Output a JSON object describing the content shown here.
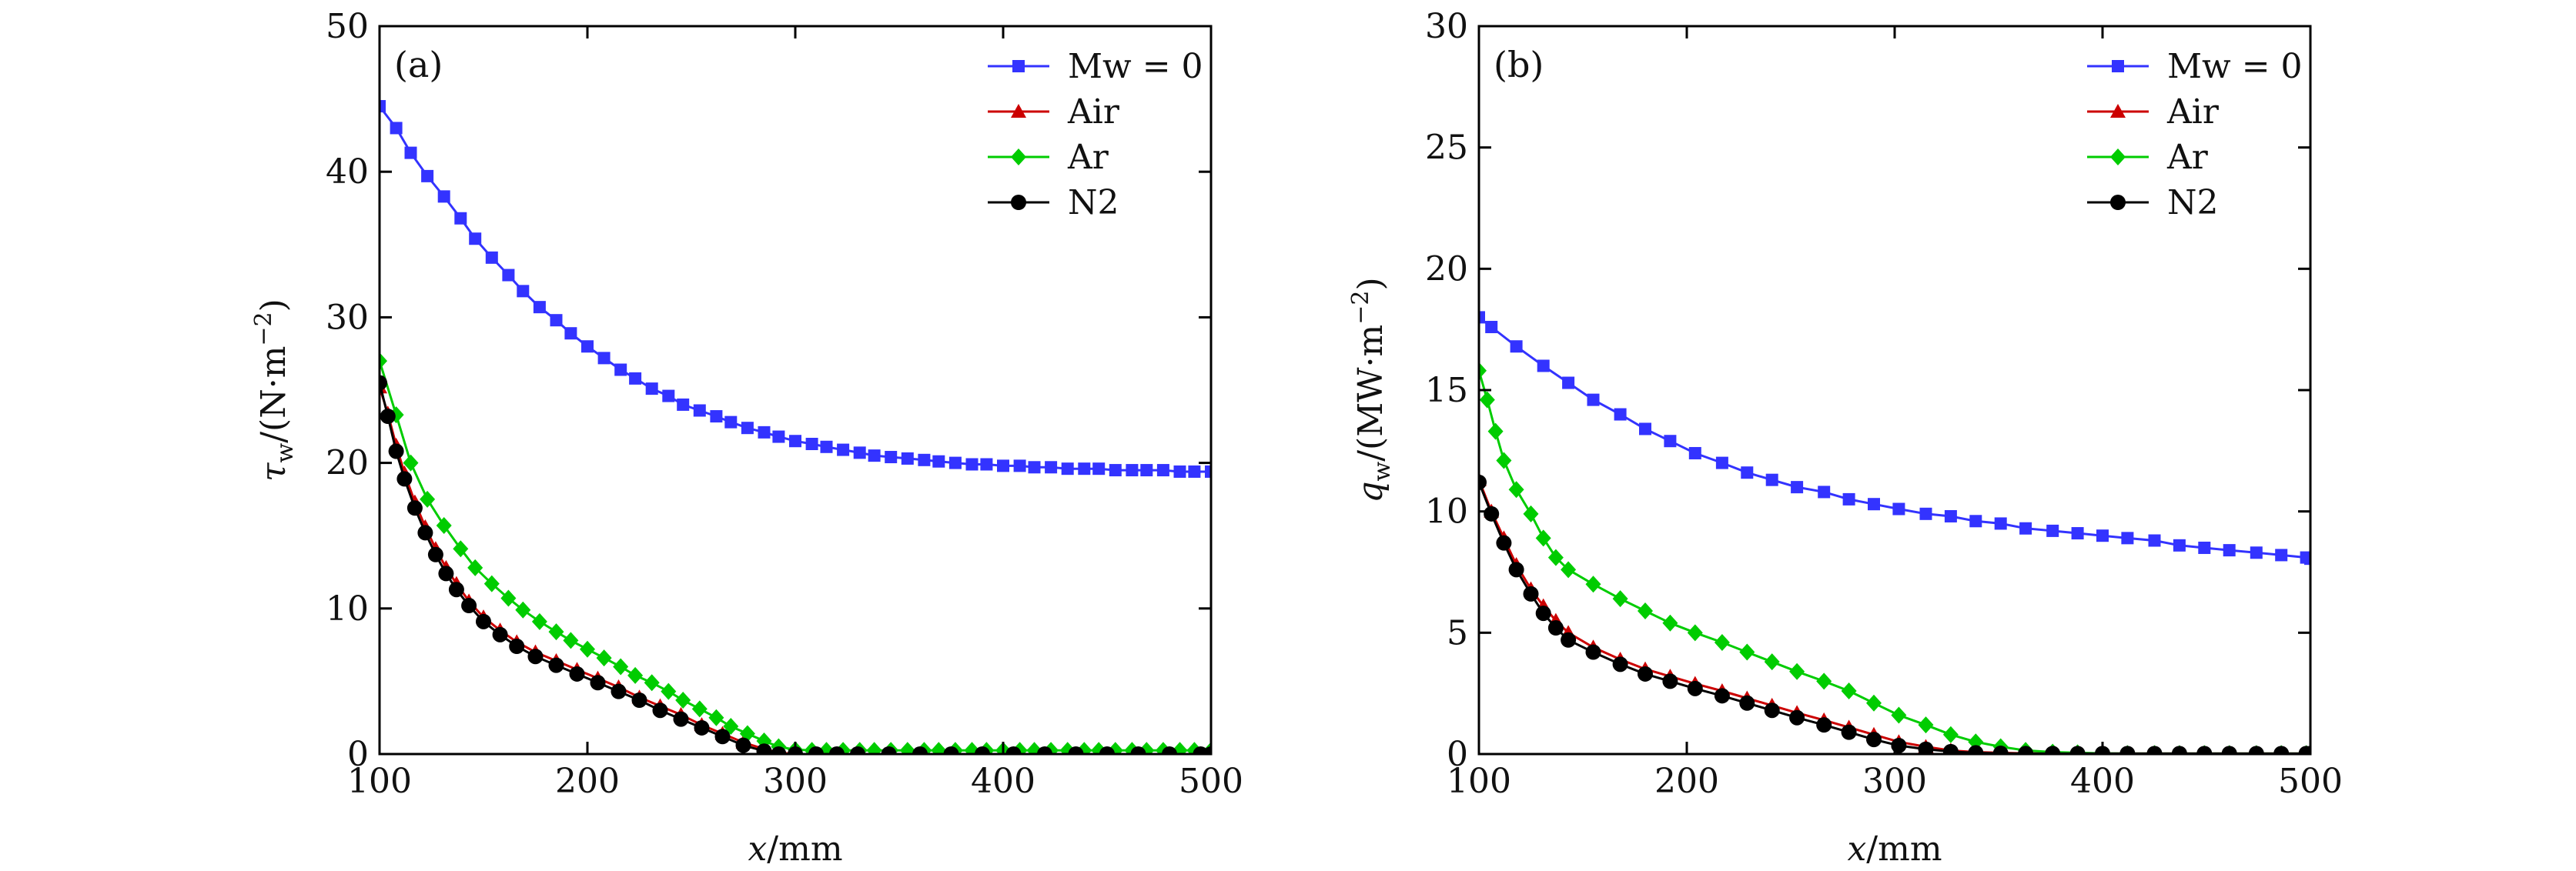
{
  "chart_data": [
    {
      "type": "line",
      "panel_label": "(a)",
      "xlabel": "x/mm",
      "ylabel": "τw/(N·m−2)",
      "xlim": [
        100,
        500
      ],
      "ylim": [
        0,
        50
      ],
      "x_ticks": [
        100,
        200,
        300,
        400,
        500
      ],
      "y_ticks": [
        0,
        10,
        20,
        30,
        40,
        50
      ],
      "grid": false,
      "legend_position": "top-right",
      "series": [
        {
          "name": "Mw = 0",
          "color": "#3333ff",
          "marker": "square",
          "x": [
            100,
            108,
            115,
            123,
            131,
            139,
            146,
            154,
            162,
            169,
            177,
            185,
            192,
            200,
            208,
            216,
            223,
            231,
            239,
            246,
            254,
            262,
            269,
            277,
            285,
            292,
            300,
            308,
            315,
            323,
            331,
            338,
            346,
            354,
            362,
            369,
            377,
            385,
            392,
            400,
            408,
            415,
            423,
            431,
            439,
            446,
            454,
            462,
            469,
            477,
            485,
            492,
            500
          ],
          "y": [
            44.5,
            43.0,
            41.3,
            39.7,
            38.3,
            36.8,
            35.4,
            34.1,
            32.9,
            31.8,
            30.7,
            29.8,
            28.9,
            28.0,
            27.2,
            26.4,
            25.8,
            25.1,
            24.6,
            24.0,
            23.6,
            23.2,
            22.8,
            22.4,
            22.1,
            21.8,
            21.5,
            21.3,
            21.1,
            20.9,
            20.7,
            20.5,
            20.4,
            20.3,
            20.2,
            20.1,
            20.0,
            19.9,
            19.9,
            19.8,
            19.8,
            19.7,
            19.7,
            19.6,
            19.6,
            19.6,
            19.5,
            19.5,
            19.5,
            19.5,
            19.4,
            19.4,
            19.4
          ]
        },
        {
          "name": "Air",
          "color": "#cc0000",
          "marker": "triangle",
          "x": [
            100,
            104,
            108,
            112,
            117,
            122,
            127,
            132,
            137,
            143,
            150,
            158,
            166,
            175,
            185,
            195,
            205,
            215,
            225,
            235,
            245,
            255,
            265,
            275,
            285,
            292,
            300,
            310,
            320,
            330,
            345,
            360,
            375,
            390,
            405,
            420,
            435,
            450,
            465,
            480,
            495,
            500
          ],
          "y": [
            25.2,
            23.4,
            21.2,
            19.3,
            17.3,
            15.6,
            14.1,
            12.8,
            11.7,
            10.5,
            9.4,
            8.5,
            7.7,
            7.0,
            6.4,
            5.8,
            5.2,
            4.6,
            3.9,
            3.3,
            2.7,
            2.0,
            1.4,
            0.8,
            0.35,
            0.1,
            0.0,
            0.0,
            0.0,
            0.0,
            0.0,
            0.0,
            0.0,
            0.0,
            0.0,
            0.0,
            0.0,
            0.0,
            0.0,
            0.0,
            0.0,
            0.0
          ]
        },
        {
          "name": "Ar",
          "color": "#00cc00",
          "marker": "diamond",
          "x": [
            100,
            108,
            115,
            123,
            131,
            139,
            146,
            154,
            162,
            169,
            177,
            185,
            192,
            200,
            208,
            216,
            223,
            231,
            239,
            246,
            254,
            262,
            269,
            277,
            285,
            292,
            300,
            308,
            315,
            323,
            331,
            338,
            346,
            354,
            362,
            369,
            377,
            385,
            392,
            400,
            408,
            415,
            423,
            431,
            439,
            446,
            454,
            462,
            469,
            477,
            485,
            492,
            500
          ],
          "y": [
            27.0,
            23.3,
            20.0,
            17.5,
            15.7,
            14.1,
            12.8,
            11.7,
            10.7,
            9.9,
            9.1,
            8.4,
            7.8,
            7.2,
            6.6,
            6.0,
            5.4,
            4.9,
            4.3,
            3.7,
            3.1,
            2.5,
            1.9,
            1.4,
            0.9,
            0.5,
            0.3,
            0.25,
            0.25,
            0.25,
            0.25,
            0.25,
            0.25,
            0.25,
            0.25,
            0.25,
            0.25,
            0.25,
            0.25,
            0.25,
            0.25,
            0.25,
            0.25,
            0.25,
            0.25,
            0.25,
            0.25,
            0.25,
            0.25,
            0.25,
            0.25,
            0.25,
            0.25
          ]
        },
        {
          "name": "N2",
          "color": "#000000",
          "marker": "circle",
          "x": [
            100,
            104,
            108,
            112,
            117,
            122,
            127,
            132,
            137,
            143,
            150,
            158,
            166,
            175,
            185,
            195,
            205,
            215,
            225,
            235,
            245,
            255,
            265,
            275,
            285,
            292,
            300,
            310,
            320,
            330,
            345,
            360,
            375,
            390,
            405,
            420,
            435,
            450,
            465,
            480,
            495,
            500
          ],
          "y": [
            25.5,
            23.2,
            20.8,
            18.9,
            16.9,
            15.2,
            13.7,
            12.4,
            11.3,
            10.2,
            9.1,
            8.2,
            7.4,
            6.7,
            6.1,
            5.5,
            4.9,
            4.3,
            3.7,
            3.0,
            2.4,
            1.8,
            1.2,
            0.6,
            0.2,
            0.0,
            0.0,
            0.0,
            0.0,
            0.0,
            0.0,
            0.0,
            0.0,
            0.0,
            0.0,
            0.0,
            0.0,
            0.0,
            0.0,
            0.0,
            0.0,
            0.0
          ]
        }
      ]
    },
    {
      "type": "line",
      "panel_label": "(b)",
      "xlabel": "x/mm",
      "ylabel": "qw/(MW·m−2)",
      "xlim": [
        100,
        500
      ],
      "ylim": [
        0,
        30
      ],
      "x_ticks": [
        100,
        200,
        300,
        400,
        500
      ],
      "y_ticks": [
        0,
        5,
        10,
        15,
        20,
        25,
        30
      ],
      "grid": false,
      "legend_position": "top-right",
      "series": [
        {
          "name": "Mw = 0",
          "color": "#3333ff",
          "marker": "square",
          "x": [
            100,
            106,
            118,
            131,
            143,
            155,
            168,
            180,
            192,
            204,
            217,
            229,
            241,
            253,
            266,
            278,
            290,
            302,
            315,
            327,
            339,
            351,
            363,
            376,
            388,
            400,
            412,
            425,
            437,
            449,
            461,
            474,
            486,
            498,
            500
          ],
          "y": [
            18.0,
            17.6,
            16.8,
            16.0,
            15.3,
            14.6,
            14.0,
            13.4,
            12.9,
            12.4,
            12.0,
            11.6,
            11.3,
            11.0,
            10.8,
            10.5,
            10.3,
            10.1,
            9.9,
            9.8,
            9.6,
            9.5,
            9.3,
            9.2,
            9.1,
            9.0,
            8.9,
            8.8,
            8.6,
            8.5,
            8.4,
            8.3,
            8.2,
            8.1,
            8.05
          ]
        },
        {
          "name": "Air",
          "color": "#cc0000",
          "marker": "triangle",
          "x": [
            100,
            106,
            112,
            118,
            125,
            131,
            137,
            143,
            155,
            168,
            180,
            192,
            204,
            217,
            229,
            241,
            253,
            266,
            278,
            290,
            302,
            315,
            327,
            339,
            351,
            363,
            376,
            388,
            400,
            412,
            425,
            437,
            449,
            461,
            474,
            486,
            498,
            500
          ],
          "y": [
            11.3,
            10.0,
            8.9,
            7.8,
            6.8,
            6.1,
            5.5,
            5.0,
            4.4,
            3.9,
            3.5,
            3.2,
            2.9,
            2.6,
            2.3,
            2.0,
            1.7,
            1.4,
            1.1,
            0.8,
            0.5,
            0.3,
            0.15,
            0.08,
            0.05,
            0.03,
            0.02,
            0.02,
            0.02,
            0.02,
            0.02,
            0.02,
            0.02,
            0.02,
            0.02,
            0.02,
            0.02,
            0.02
          ]
        },
        {
          "name": "Ar",
          "color": "#00cc00",
          "marker": "diamond",
          "x": [
            100,
            104,
            108,
            112,
            118,
            125,
            131,
            137,
            143,
            155,
            168,
            180,
            192,
            204,
            217,
            229,
            241,
            253,
            266,
            278,
            290,
            302,
            315,
            327,
            339,
            351,
            363,
            376,
            388,
            400,
            412,
            425,
            437,
            449,
            461,
            474,
            486,
            498,
            500
          ],
          "y": [
            15.8,
            14.6,
            13.3,
            12.1,
            10.9,
            9.9,
            8.9,
            8.1,
            7.6,
            7.0,
            6.4,
            5.9,
            5.4,
            5.0,
            4.6,
            4.2,
            3.8,
            3.4,
            3.0,
            2.6,
            2.1,
            1.6,
            1.2,
            0.8,
            0.5,
            0.3,
            0.15,
            0.08,
            0.05,
            0.03,
            0.02,
            0.02,
            0.02,
            0.02,
            0.02,
            0.02,
            0.02,
            0.02,
            0.02
          ]
        },
        {
          "name": "N2",
          "color": "#000000",
          "marker": "circle",
          "x": [
            100,
            106,
            112,
            118,
            125,
            131,
            137,
            143,
            155,
            168,
            180,
            192,
            204,
            217,
            229,
            241,
            253,
            266,
            278,
            290,
            302,
            315,
            327,
            339,
            351,
            363,
            376,
            388,
            400,
            412,
            425,
            437,
            449,
            461,
            474,
            486,
            498,
            500
          ],
          "y": [
            11.2,
            9.9,
            8.7,
            7.6,
            6.6,
            5.8,
            5.2,
            4.7,
            4.2,
            3.7,
            3.3,
            3.0,
            2.7,
            2.4,
            2.1,
            1.8,
            1.5,
            1.2,
            0.9,
            0.6,
            0.35,
            0.2,
            0.1,
            0.05,
            0.03,
            0.02,
            0.02,
            0.02,
            0.02,
            0.02,
            0.02,
            0.02,
            0.02,
            0.02,
            0.02,
            0.02,
            0.02,
            0.02
          ]
        }
      ]
    }
  ]
}
